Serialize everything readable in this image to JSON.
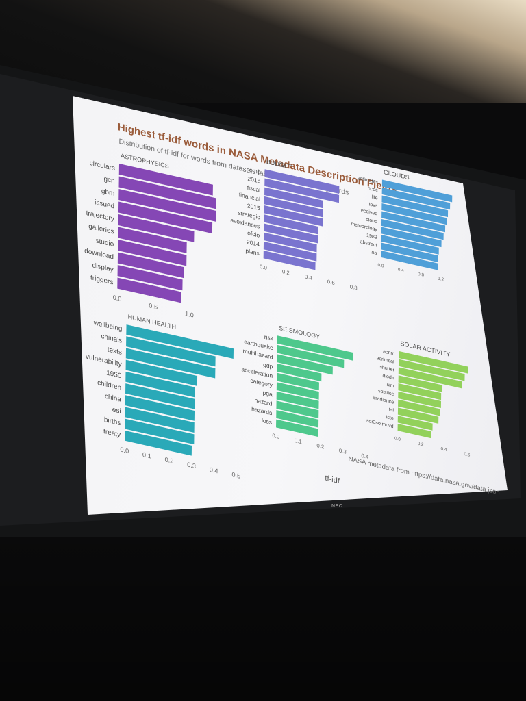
{
  "tv_brand": "NEC",
  "chart_data": {
    "type": "bar",
    "orientation": "horizontal",
    "title": "Highest tf-idf words in NASA Metadata Description Fields",
    "subtitle": "Distribution of tf-idf for words from datasets labeled with select keywords",
    "xlabel": "tf-idf",
    "caption": "NASA metadata from https://data.nasa.gov/data.json",
    "panels": [
      {
        "name": "ASTROPHYSICS",
        "color": "#8547b5",
        "categories": [
          "circulars",
          "gcn",
          "gbm",
          "issued",
          "trajectory",
          "galleries",
          "studio",
          "download",
          "display",
          "triggers"
        ],
        "values": [
          1.3,
          1.35,
          1.35,
          1.3,
          1.05,
          0.95,
          0.95,
          0.92,
          0.9,
          0.88
        ],
        "ticks": [
          "0.0",
          "0.5",
          "1.0"
        ],
        "tick_values": [
          0,
          0.5,
          1.0
        ],
        "xlim": [
          0,
          1.5
        ]
      },
      {
        "name": "BUDGET",
        "color": "#7a74cf",
        "categories": [
          "omb",
          "2016",
          "fiscal",
          "financial",
          "2015",
          "strategic",
          "avoidances",
          "ofcio",
          "2014",
          "plans"
        ],
        "values": [
          0.66,
          0.66,
          0.52,
          0.52,
          0.52,
          0.48,
          0.48,
          0.47,
          0.47,
          0.46
        ],
        "ticks": [
          "0.0",
          "0.2",
          "0.4",
          "0.6",
          "0.8"
        ],
        "tick_values": [
          0,
          0.2,
          0.4,
          0.6,
          0.8
        ],
        "xlim": [
          0,
          0.85
        ]
      },
      {
        "name": "CLOUDS",
        "color": "#4f9fd8",
        "categories": [
          "estimates",
          "ncdc",
          "life",
          "tovs",
          "received",
          "cloud",
          "meteorology",
          "1989",
          "abstract",
          "toa"
        ],
        "values": [
          1.4,
          1.36,
          1.32,
          1.3,
          1.27,
          1.24,
          1.2,
          1.15,
          1.14,
          1.14
        ],
        "ticks": [
          "0.0",
          "0.4",
          "0.8",
          "1.2"
        ],
        "tick_values": [
          0,
          0.4,
          0.8,
          1.2
        ],
        "xlim": [
          0,
          1.45
        ]
      },
      {
        "name": "HUMAN HEALTH",
        "color": "#2aa9b8",
        "categories": [
          "wellbeing",
          "china's",
          "texts",
          "vulnerability",
          "1950",
          "children",
          "china",
          "esi",
          "births",
          "treaty"
        ],
        "values": [
          0.48,
          0.4,
          0.4,
          0.32,
          0.31,
          0.31,
          0.31,
          0.31,
          0.31,
          0.3
        ],
        "ticks": [
          "0.0",
          "0.1",
          "0.2",
          "0.3",
          "0.4",
          "0.5"
        ],
        "tick_values": [
          0,
          0.1,
          0.2,
          0.3,
          0.4,
          0.5
        ],
        "xlim": [
          0,
          0.5
        ]
      },
      {
        "name": "SEISMOLOGY",
        "color": "#4ec88c",
        "categories": [
          "risk",
          "earthquake",
          "multihazard",
          "gdp",
          "acceleration",
          "category",
          "pga",
          "hazard",
          "hazards",
          "loss"
        ],
        "values": [
          0.34,
          0.3,
          0.25,
          0.2,
          0.19,
          0.19,
          0.19,
          0.19,
          0.19,
          0.19
        ],
        "ticks": [
          "0.0",
          "0.1",
          "0.2",
          "0.3",
          "0.4"
        ],
        "tick_values": [
          0,
          0.1,
          0.2,
          0.3,
          0.4
        ],
        "xlim": [
          0,
          0.4
        ]
      },
      {
        "name": "SOLAR ACTIVITY",
        "color": "#92d15b",
        "categories": [
          "acrim",
          "acrimsat",
          "shutter",
          "diode",
          "sim",
          "solstice",
          "irradiance",
          "tsi",
          "tcte",
          "sor3solmuvd"
        ],
        "values": [
          0.6,
          0.57,
          0.55,
          0.38,
          0.37,
          0.37,
          0.36,
          0.35,
          0.3,
          0.29
        ],
        "ticks": [
          "0.0",
          "0.2",
          "0.4",
          "0.6"
        ],
        "tick_values": [
          0,
          0.2,
          0.4,
          0.6
        ],
        "xlim": [
          0,
          0.65
        ]
      }
    ]
  }
}
